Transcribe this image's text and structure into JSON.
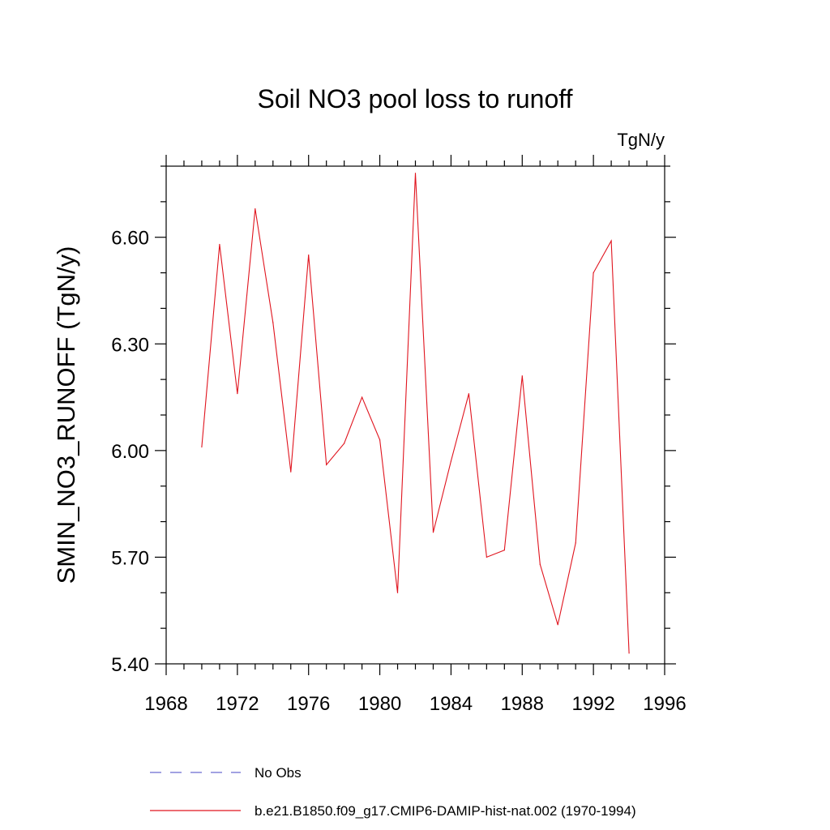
{
  "chart_data": {
    "type": "line",
    "title": "Soil NO3 pool loss to runoff",
    "units": "TgN/y",
    "ylabel": "SMIN_NO3_RUNOFF  (TgN/y)",
    "xlabel": "",
    "xlim": [
      1968,
      1996
    ],
    "ylim": [
      5.4,
      6.8
    ],
    "x_ticks": [
      "1968",
      "1972",
      "1976",
      "1980",
      "1984",
      "1988",
      "1992",
      "1996"
    ],
    "y_ticks": [
      "5.40",
      "5.70",
      "6.00",
      "6.30",
      "6.60"
    ],
    "grid": false,
    "legend_position": "bottom",
    "series": [
      {
        "name": "No Obs",
        "style": "dashed",
        "color": "#6a6ad0",
        "x": [],
        "values": []
      },
      {
        "name": "b.e21.B1850.f09_g17.CMIP6-DAMIP-hist-nat.002 (1970-1994)",
        "style": "solid",
        "color": "#e0141e",
        "x": [
          1970,
          1971,
          1972,
          1973,
          1974,
          1975,
          1976,
          1977,
          1978,
          1979,
          1980,
          1981,
          1982,
          1983,
          1984,
          1985,
          1986,
          1987,
          1988,
          1989,
          1990,
          1991,
          1992,
          1993,
          1994
        ],
        "values": [
          6.01,
          6.58,
          6.16,
          6.68,
          6.36,
          5.94,
          6.55,
          5.96,
          6.02,
          6.15,
          6.03,
          5.6,
          6.78,
          5.77,
          5.97,
          6.16,
          5.7,
          5.72,
          6.21,
          5.68,
          5.51,
          5.74,
          6.5,
          6.59,
          5.43
        ]
      }
    ]
  }
}
